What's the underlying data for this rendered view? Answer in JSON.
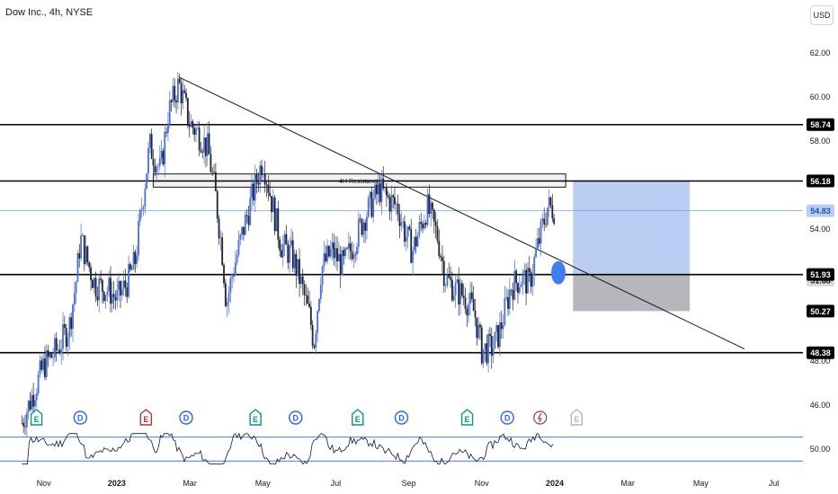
{
  "header": {
    "symbol_line": "Dow Inc., 4h, NYSE",
    "currency_button": "USD"
  },
  "chart_data": {
    "type": "candlestick",
    "price_axis": {
      "ylim": [
        44.9,
        64.4
      ],
      "ticks": [
        "46.00",
        "54.00",
        "58.00",
        "60.00",
        "62.00"
      ],
      "partial_tick": {
        "value": 48.0,
        "label": "48.00"
      }
    },
    "time_axis": {
      "labels": [
        {
          "label": "Nov",
          "t": 0.6
        },
        {
          "label": "2023",
          "t": 2.6
        },
        {
          "label": "Mar",
          "t": 4.6
        },
        {
          "label": "May",
          "t": 6.6
        },
        {
          "label": "Jul",
          "t": 8.6
        },
        {
          "label": "Sep",
          "t": 10.6
        },
        {
          "label": "Nov",
          "t": 12.6
        },
        {
          "label": "2024",
          "t": 14.6
        },
        {
          "label": "Mar",
          "t": 16.6
        },
        {
          "label": "May",
          "t": 18.6
        },
        {
          "label": "Jul",
          "t": 20.6
        }
      ],
      "trange": [
        -0.6,
        21.4
      ]
    },
    "price_path": [
      {
        "t": 0.0,
        "p": 45.2
      },
      {
        "t": 0.3,
        "p": 46.5
      },
      {
        "t": 0.6,
        "p": 47.8
      },
      {
        "t": 1.0,
        "p": 48.6
      },
      {
        "t": 1.3,
        "p": 49.6
      },
      {
        "t": 1.5,
        "p": 51.8
      },
      {
        "t": 1.6,
        "p": 53.6
      },
      {
        "t": 1.8,
        "p": 52.5
      },
      {
        "t": 2.0,
        "p": 51.5
      },
      {
        "t": 2.4,
        "p": 51.2
      },
      {
        "t": 2.6,
        "p": 50.8
      },
      {
        "t": 2.9,
        "p": 51.6
      },
      {
        "t": 3.1,
        "p": 52.5
      },
      {
        "t": 3.3,
        "p": 55.2
      },
      {
        "t": 3.5,
        "p": 57.8
      },
      {
        "t": 3.8,
        "p": 56.6
      },
      {
        "t": 4.0,
        "p": 59.2
      },
      {
        "t": 4.3,
        "p": 60.6
      },
      {
        "t": 4.6,
        "p": 58.8
      },
      {
        "t": 4.9,
        "p": 58.2
      },
      {
        "t": 5.1,
        "p": 57.6
      },
      {
        "t": 5.3,
        "p": 55.6
      },
      {
        "t": 5.5,
        "p": 52.8
      },
      {
        "t": 5.6,
        "p": 50.6
      },
      {
        "t": 5.8,
        "p": 52.2
      },
      {
        "t": 6.1,
        "p": 54.2
      },
      {
        "t": 6.4,
        "p": 56.0
      },
      {
        "t": 6.6,
        "p": 57.2
      },
      {
        "t": 6.9,
        "p": 54.8
      },
      {
        "t": 7.1,
        "p": 53.3
      },
      {
        "t": 7.4,
        "p": 52.8
      },
      {
        "t": 7.6,
        "p": 51.8
      },
      {
        "t": 7.9,
        "p": 49.9
      },
      {
        "t": 8.0,
        "p": 48.8
      },
      {
        "t": 8.2,
        "p": 52.2
      },
      {
        "t": 8.5,
        "p": 53.0
      },
      {
        "t": 8.8,
        "p": 52.3
      },
      {
        "t": 9.1,
        "p": 53.4
      },
      {
        "t": 9.4,
        "p": 54.6
      },
      {
        "t": 9.8,
        "p": 55.8
      },
      {
        "t": 10.0,
        "p": 55.4
      },
      {
        "t": 10.3,
        "p": 55.0
      },
      {
        "t": 10.5,
        "p": 53.8
      },
      {
        "t": 10.7,
        "p": 53.0
      },
      {
        "t": 11.1,
        "p": 55.0
      },
      {
        "t": 11.4,
        "p": 53.6
      },
      {
        "t": 11.6,
        "p": 51.8
      },
      {
        "t": 11.9,
        "p": 51.2
      },
      {
        "t": 12.1,
        "p": 51.0
      },
      {
        "t": 12.4,
        "p": 50.2
      },
      {
        "t": 12.6,
        "p": 48.5
      },
      {
        "t": 12.9,
        "p": 48.6
      },
      {
        "t": 13.1,
        "p": 49.4
      },
      {
        "t": 13.4,
        "p": 51.4
      },
      {
        "t": 13.7,
        "p": 51.8
      },
      {
        "t": 13.9,
        "p": 51.5
      },
      {
        "t": 14.1,
        "p": 53.0
      },
      {
        "t": 14.4,
        "p": 55.0
      },
      {
        "t": 14.6,
        "p": 54.9
      }
    ],
    "horizontal_levels": [
      {
        "value": 58.74,
        "label": "58.74"
      },
      {
        "value": 56.18,
        "label": "56.18"
      },
      {
        "value": 51.93,
        "label": "51.93"
      },
      {
        "value": 48.38,
        "label": "48.38"
      }
    ],
    "last_price": {
      "value": 54.83,
      "label": "54.83"
    },
    "extra_price_labels": [
      {
        "value": 56.2,
        "label": "56.20",
        "style": "blue"
      },
      {
        "value": 51.68,
        "label": "51.68",
        "style": "gray"
      },
      {
        "value": 50.27,
        "label": "50.27",
        "style": "dark"
      }
    ],
    "resistance_zone": {
      "label": "4H Resistance",
      "t_start": 3.6,
      "t_end": 14.9,
      "p_low": 55.9,
      "p_high": 56.5
    },
    "trendline": {
      "t1": 4.3,
      "p1": 60.9,
      "t2": 19.8,
      "p2": 48.55
    },
    "position_tool": {
      "t_start": 15.1,
      "t_end": 18.3,
      "entry": 51.93,
      "target": 56.2,
      "stop": 50.27
    },
    "entry_marker": {
      "t": 14.7,
      "p": 51.93
    },
    "event_markers": [
      {
        "kind": "E",
        "t": 0.4,
        "style": "green"
      },
      {
        "kind": "D",
        "t": 1.6,
        "style": "blue"
      },
      {
        "kind": "E",
        "t": 3.4,
        "style": "red"
      },
      {
        "kind": "D",
        "t": 4.5,
        "style": "blue"
      },
      {
        "kind": "E",
        "t": 6.4,
        "style": "green"
      },
      {
        "kind": "D",
        "t": 7.5,
        "style": "blue"
      },
      {
        "kind": "E",
        "t": 9.2,
        "style": "green"
      },
      {
        "kind": "D",
        "t": 10.4,
        "style": "blue"
      },
      {
        "kind": "E",
        "t": 12.2,
        "style": "green"
      },
      {
        "kind": "D",
        "t": 13.3,
        "style": "blue"
      },
      {
        "kind": "split",
        "t": 14.2,
        "style": "red"
      },
      {
        "kind": "E",
        "t": 15.2,
        "style": "gray"
      }
    ],
    "oscillator": {
      "ylim": [
        20,
        80
      ],
      "upper_line": 70,
      "lower_line": 30,
      "axis_label": "50.00",
      "axis_value": 50.0
    }
  }
}
